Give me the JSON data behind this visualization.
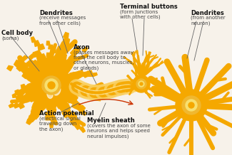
{
  "bg_color": "#f7f2ea",
  "neuron_color": "#F5A800",
  "neuron_light": "#FAD060",
  "neuron_pale": "#FCE8A0",
  "soma_ring": "#F0B830",
  "soma_inner": "#F8E070",
  "line_color": "#666666",
  "arrow_color": "#CC3300",
  "text_bold_color": "#111111",
  "text_sub_color": "#444444",
  "labels": {
    "cell_body_bold": "Cell body",
    "cell_body_sub": "(soma)",
    "dendrites1_bold": "Dendrites",
    "dendrites1_sub": "(receive messages\nfrom other cells)",
    "axon_bold": "Axon",
    "axon_sub": "(passes messages away\nfrom the cell body to\nother neurons, muscles,\nor glands)",
    "action_bold": "Action potential",
    "action_sub": "(electrical signal\ntraveling down\nthe axon)",
    "myelin_bold": "Myelin sheath",
    "myelin_sub": "(covers the axon of some\nneurons and helps speed\nneural impulses)",
    "terminal_bold": "Terminal buttons",
    "terminal_sub": "(form junctions\nwith other cells)",
    "dendrites2_bold": "Dendrites",
    "dendrites2_sub": "(from another\nneuron)"
  },
  "fontsize_bold": 6.0,
  "fontsize_sub": 5.0
}
